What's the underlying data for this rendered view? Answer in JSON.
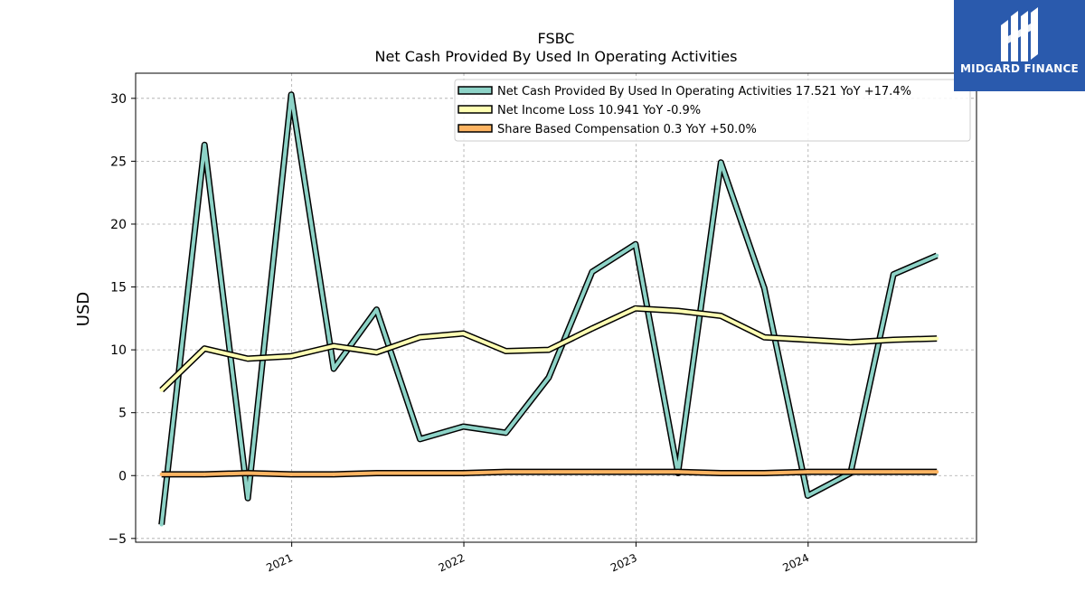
{
  "chart_data": {
    "type": "line",
    "title": "FSBC",
    "subtitle": "Net Cash Provided By Used In Operating Activities",
    "ylabel": "USD",
    "xlabel": "",
    "ylim": [
      -5.3,
      32.0
    ],
    "yticks": [
      -5,
      0,
      5,
      10,
      15,
      20,
      25,
      30
    ],
    "xlim": [
      "2020-02-05",
      "2024-12-23"
    ],
    "xticks": [
      {
        "date": "2021-01-01",
        "label": "2021"
      },
      {
        "date": "2022-01-01",
        "label": "2022"
      },
      {
        "date": "2023-01-01",
        "label": "2023"
      },
      {
        "date": "2024-01-01",
        "label": "2024"
      }
    ],
    "grid": true,
    "legend_position": "top-right",
    "series": [
      {
        "name": "Net Cash Provided By Used In Operating Activities",
        "legend_label": "Net Cash Provided By Used In Operating Activities  17.521 YoY +17.4%",
        "color": "#8dd3c7",
        "points": [
          {
            "x": "2020-03-31",
            "y": -3.9
          },
          {
            "x": "2020-06-30",
            "y": 26.3
          },
          {
            "x": "2020-09-30",
            "y": -1.8
          },
          {
            "x": "2020-12-31",
            "y": 30.3
          },
          {
            "x": "2021-03-31",
            "y": 8.5
          },
          {
            "x": "2021-06-30",
            "y": 13.2
          },
          {
            "x": "2021-09-30",
            "y": 2.9
          },
          {
            "x": "2021-12-31",
            "y": 3.9
          },
          {
            "x": "2022-03-31",
            "y": 3.4
          },
          {
            "x": "2022-06-30",
            "y": 7.8
          },
          {
            "x": "2022-09-30",
            "y": 16.2
          },
          {
            "x": "2022-12-31",
            "y": 18.4
          },
          {
            "x": "2023-03-31",
            "y": 0.2
          },
          {
            "x": "2023-06-30",
            "y": 24.9
          },
          {
            "x": "2023-09-30",
            "y": 14.9
          },
          {
            "x": "2023-12-31",
            "y": -1.6
          },
          {
            "x": "2024-03-31",
            "y": 0.2
          },
          {
            "x": "2024-06-30",
            "y": 16.0
          },
          {
            "x": "2024-09-30",
            "y": 17.5
          }
        ]
      },
      {
        "name": "Net Income Loss",
        "legend_label": "Net Income Loss  10.941 YoY -0.9%",
        "color": "#ffffb3",
        "points": [
          {
            "x": "2020-03-31",
            "y": 6.8
          },
          {
            "x": "2020-06-30",
            "y": 10.1
          },
          {
            "x": "2020-09-30",
            "y": 9.3
          },
          {
            "x": "2020-12-31",
            "y": 9.5
          },
          {
            "x": "2021-03-31",
            "y": 10.3
          },
          {
            "x": "2021-06-30",
            "y": 9.8
          },
          {
            "x": "2021-09-30",
            "y": 11.0
          },
          {
            "x": "2021-12-31",
            "y": 11.3
          },
          {
            "x": "2022-03-31",
            "y": 9.9
          },
          {
            "x": "2022-06-30",
            "y": 10.0
          },
          {
            "x": "2022-09-30",
            "y": 11.7
          },
          {
            "x": "2022-12-31",
            "y": 13.3
          },
          {
            "x": "2023-03-31",
            "y": 13.1
          },
          {
            "x": "2023-06-30",
            "y": 12.7
          },
          {
            "x": "2023-09-30",
            "y": 11.0
          },
          {
            "x": "2023-12-31",
            "y": 10.8
          },
          {
            "x": "2024-03-31",
            "y": 10.6
          },
          {
            "x": "2024-06-30",
            "y": 10.8
          },
          {
            "x": "2024-09-30",
            "y": 10.9
          }
        ]
      },
      {
        "name": "Share Based Compensation",
        "legend_label": "Share Based Compensation  0.3 YoY +50.0%",
        "color": "#fdb462",
        "points": [
          {
            "x": "2020-03-31",
            "y": 0.1
          },
          {
            "x": "2020-06-30",
            "y": 0.1
          },
          {
            "x": "2020-09-30",
            "y": 0.2
          },
          {
            "x": "2020-12-31",
            "y": 0.1
          },
          {
            "x": "2021-03-31",
            "y": 0.1
          },
          {
            "x": "2021-06-30",
            "y": 0.2
          },
          {
            "x": "2021-09-30",
            "y": 0.2
          },
          {
            "x": "2021-12-31",
            "y": 0.2
          },
          {
            "x": "2022-03-31",
            "y": 0.3
          },
          {
            "x": "2022-06-30",
            "y": 0.3
          },
          {
            "x": "2022-09-30",
            "y": 0.3
          },
          {
            "x": "2022-12-31",
            "y": 0.3
          },
          {
            "x": "2023-03-31",
            "y": 0.3
          },
          {
            "x": "2023-06-30",
            "y": 0.2
          },
          {
            "x": "2023-09-30",
            "y": 0.2
          },
          {
            "x": "2023-12-31",
            "y": 0.3
          },
          {
            "x": "2024-03-31",
            "y": 0.3
          },
          {
            "x": "2024-06-30",
            "y": 0.3
          },
          {
            "x": "2024-09-30",
            "y": 0.3
          }
        ]
      }
    ]
  },
  "logo": {
    "text": "MIDGARD FINANCE",
    "background": "#2a5aad",
    "icon": "midgard-logo-icon"
  }
}
